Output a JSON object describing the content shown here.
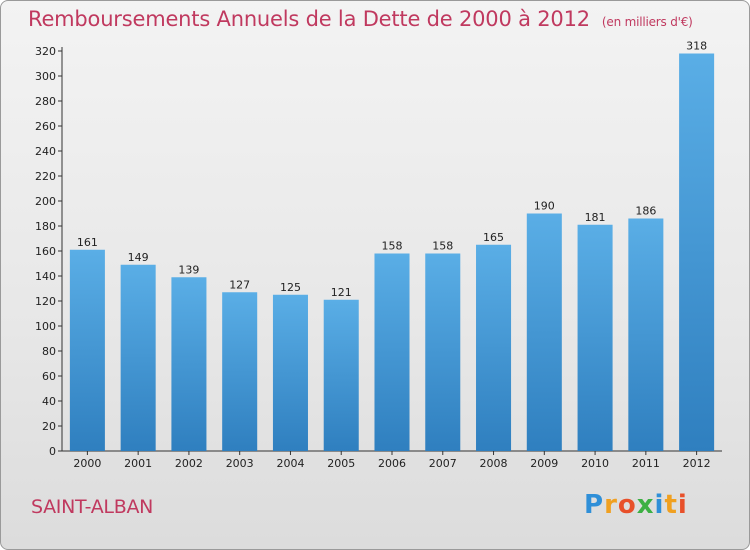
{
  "chart_data": {
    "type": "bar",
    "title": "Remboursements Annuels de la Dette de 2000 à 2012",
    "unit": "(en milliers d'€)",
    "categories": [
      "2000",
      "2001",
      "2002",
      "2003",
      "2004",
      "2005",
      "2006",
      "2007",
      "2008",
      "2009",
      "2010",
      "2011",
      "2012"
    ],
    "values": [
      161,
      149,
      139,
      127,
      125,
      121,
      158,
      158,
      165,
      190,
      181,
      186,
      318
    ],
    "ylim": [
      0,
      320
    ],
    "yticks": [
      0,
      20,
      40,
      60,
      80,
      100,
      120,
      140,
      160,
      180,
      200,
      220,
      240,
      260,
      280,
      300,
      320
    ],
    "grid": false,
    "colors": {
      "bar_light": "#5aaee6",
      "bar_dark": "#2f7fbf",
      "title": "#c0395f"
    }
  },
  "commune": "SAINT-ALBAN",
  "brand": {
    "letters": [
      "P",
      "r",
      "o",
      "x",
      "i",
      "t",
      "i"
    ],
    "colors": [
      "#2f8fd8",
      "#f0a020",
      "#e8502a",
      "#3cb043",
      "#2f8fd8",
      "#f0a020",
      "#e8502a"
    ]
  }
}
